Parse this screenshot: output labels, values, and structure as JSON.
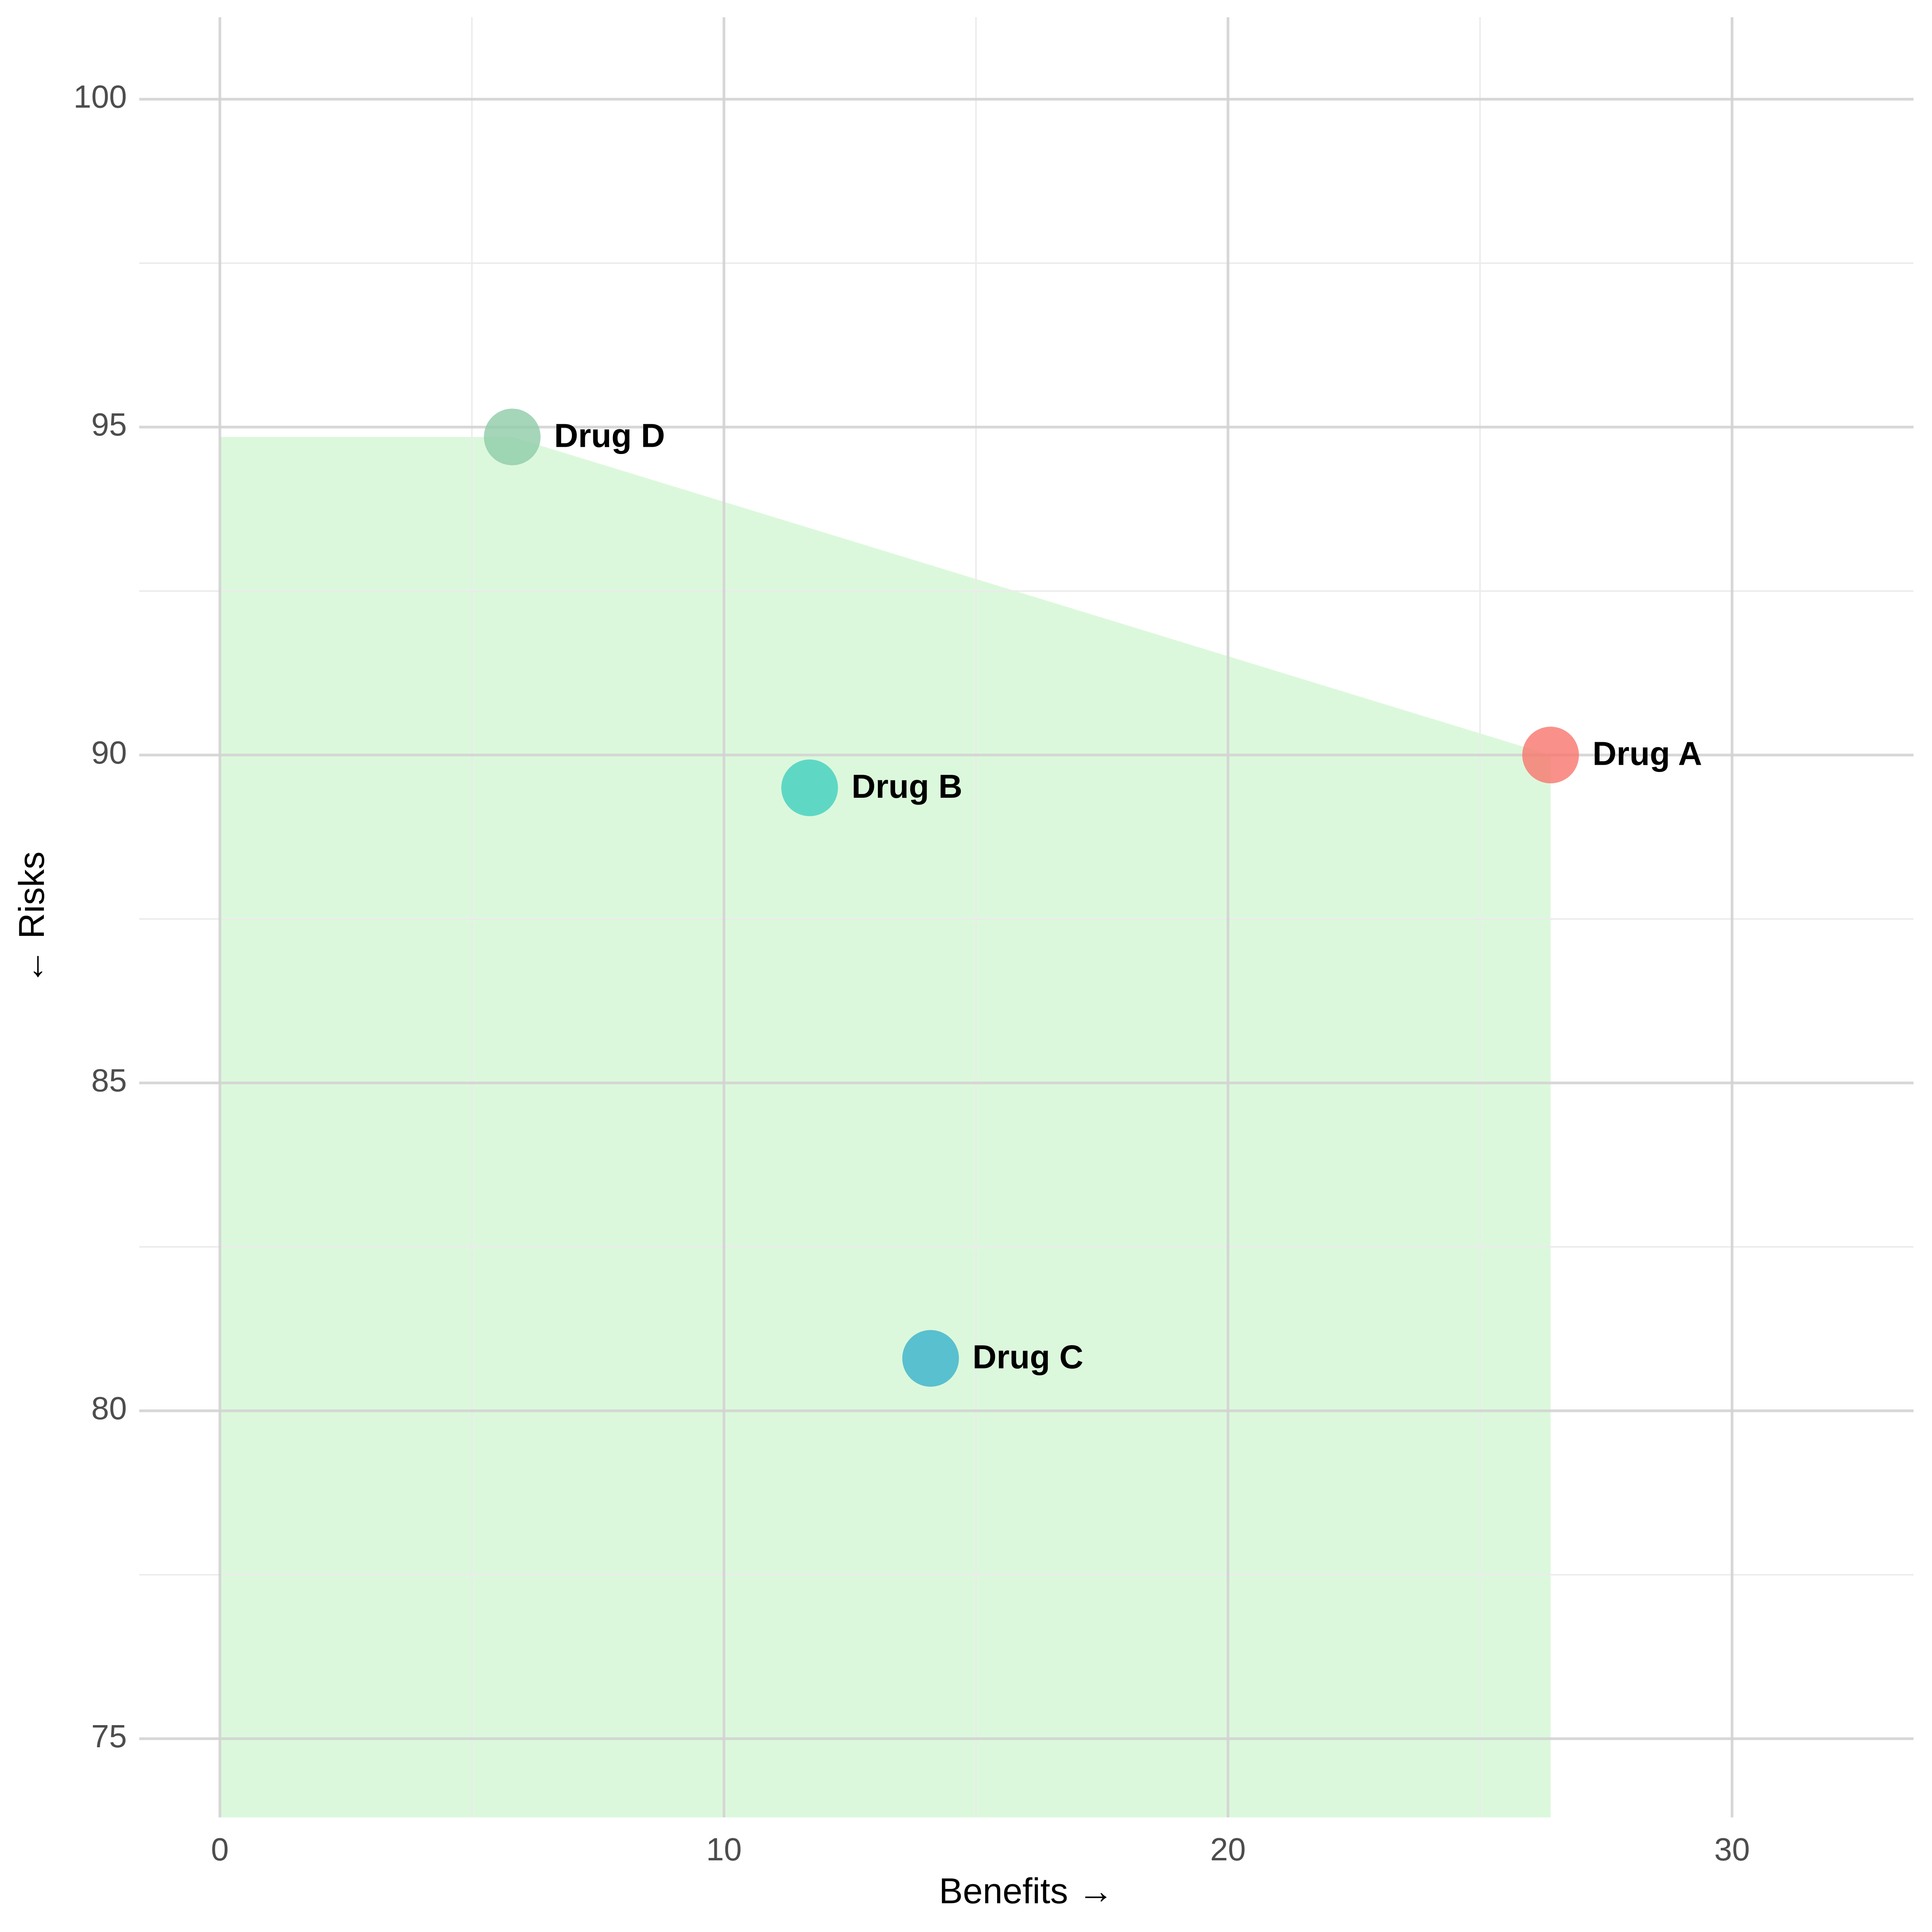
{
  "chart_data": {
    "type": "scatter",
    "x_label": "Benefits →",
    "y_label": "← Risks",
    "xlim": [
      -1.6,
      33.6
    ],
    "ylim": [
      73.8,
      101.25
    ],
    "xticks": [
      0,
      10,
      20,
      30
    ],
    "yticks": [
      75,
      80,
      85,
      90,
      95,
      100
    ],
    "xminor": [
      5,
      15,
      25
    ],
    "yminor": [
      77.5,
      82.5,
      87.5,
      92.5,
      97.5
    ],
    "grid": true,
    "area_color": "#dcf8dc",
    "series": [
      {
        "name": "Drug A",
        "color": "#f8766d",
        "x": [
          26.4
        ],
        "y": [
          90.0
        ]
      },
      {
        "name": "Drug B",
        "color": "#3fd0bf",
        "x": [
          11.7
        ],
        "y": [
          89.5
        ]
      },
      {
        "name": "Drug C",
        "color": "#38b2cc",
        "x": [
          14.1
        ],
        "y": [
          80.8
        ]
      },
      {
        "name": "Drug D",
        "color": "#8fcca8",
        "x": [
          5.8
        ],
        "y": [
          94.85
        ]
      }
    ]
  }
}
